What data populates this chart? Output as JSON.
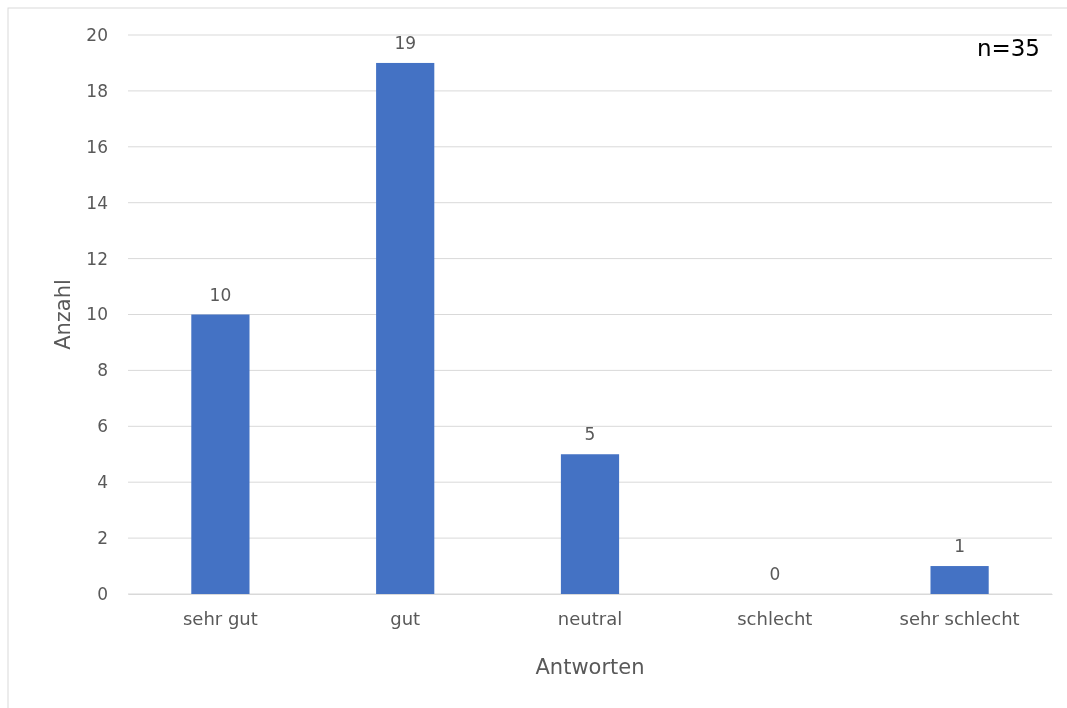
{
  "chart_data": {
    "type": "bar",
    "xlabel": "Antworten",
    "ylabel": "Anzahl",
    "annotations": [
      "n=35"
    ],
    "categories": [
      "sehr gut",
      "gut",
      "neutral",
      "schlecht",
      "sehr schlecht"
    ],
    "values": [
      10,
      19,
      5,
      0,
      1
    ],
    "color": "#4472c4",
    "ylim": [
      0,
      20
    ],
    "yticks": [
      0,
      2,
      4,
      6,
      8,
      10,
      12,
      14,
      16,
      18,
      20
    ],
    "grid": "y",
    "data_labels": true
  }
}
